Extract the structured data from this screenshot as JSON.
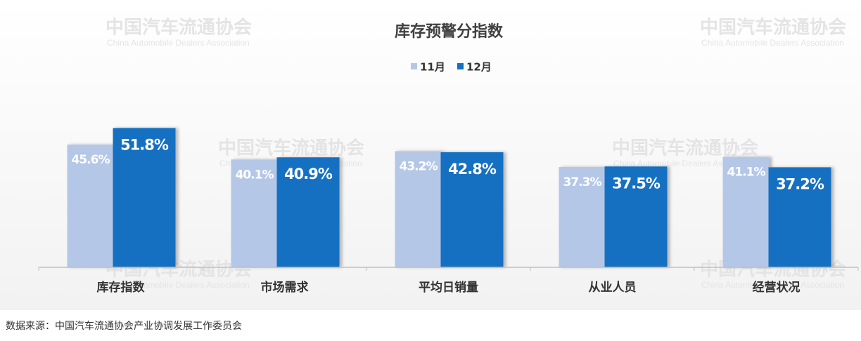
{
  "chart_data": {
    "type": "bar",
    "title": "库存预警分指数",
    "categories": [
      "库存指数",
      "市场需求",
      "平均日销量",
      "从业人员",
      "经营状况"
    ],
    "series": [
      {
        "name": "11月",
        "color": "#b4c7e7",
        "values": [
          45.6,
          40.1,
          43.2,
          37.3,
          41.1
        ],
        "value_labels": [
          "45.6%",
          "40.1%",
          "43.2%",
          "37.3%",
          "41.1%"
        ]
      },
      {
        "name": "12月",
        "color": "#1670c2",
        "values": [
          51.8,
          40.9,
          42.8,
          37.5,
          37.2
        ],
        "value_labels": [
          "51.8%",
          "40.9%",
          "42.8%",
          "37.5%",
          "37.2%"
        ]
      }
    ],
    "ylim": [
      0,
      60
    ],
    "legend": "top",
    "watermark": {
      "name": "中国汽车流通协会",
      "name_en": "China Automobile Dealers Association"
    }
  },
  "source": "数据来源：中国汽车流通协会产业协调发展工作委员会"
}
